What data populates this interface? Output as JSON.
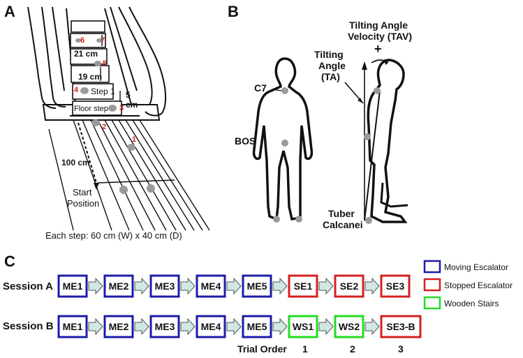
{
  "panels": {
    "a": "A",
    "b": "B",
    "c": "C"
  },
  "panel_a": {
    "step_markers": [
      "6",
      "7",
      "5",
      "4",
      "3",
      "2",
      "1"
    ],
    "dim_21": "21 cm",
    "dim_19": "19 cm",
    "dim_5": "5",
    "dim_5_unit": "cm",
    "step1": "Step 1",
    "floor_step": "Floor step",
    "dist": "100 cm",
    "start_line1": "Start",
    "start_line2": "Position",
    "caption": "Each step: 60 cm (W) x 40 cm (D)"
  },
  "panel_b": {
    "c7": "C7",
    "bos": "BOS",
    "tuber_line1": "Tuber",
    "tuber_line2": "Calcanei",
    "ta_line1": "Tilting",
    "ta_line2": "Angle",
    "ta_line3": "(TA)",
    "tav_line1": "Tilting Angle",
    "tav_line2": "Velocity (TAV)",
    "plus": "+"
  },
  "panel_c": {
    "session_a_label": "Session A",
    "session_b_label": "Session B",
    "session_a": [
      {
        "label": "ME1",
        "type": "moving"
      },
      {
        "label": "ME2",
        "type": "moving"
      },
      {
        "label": "ME3",
        "type": "moving"
      },
      {
        "label": "ME4",
        "type": "moving"
      },
      {
        "label": "ME5",
        "type": "moving"
      },
      {
        "label": "SE1",
        "type": "stopped"
      },
      {
        "label": "SE2",
        "type": "stopped"
      },
      {
        "label": "SE3",
        "type": "stopped"
      }
    ],
    "session_b": [
      {
        "label": "ME1",
        "type": "moving"
      },
      {
        "label": "ME2",
        "type": "moving"
      },
      {
        "label": "ME3",
        "type": "moving"
      },
      {
        "label": "ME4",
        "type": "moving"
      },
      {
        "label": "ME5",
        "type": "moving"
      },
      {
        "label": "WS1",
        "type": "wooden"
      },
      {
        "label": "WS2",
        "type": "wooden"
      },
      {
        "label": "SE3-B",
        "type": "stopped"
      }
    ],
    "legend": [
      {
        "label": "Moving Escalator",
        "type": "moving"
      },
      {
        "label": "Stopped Escalator",
        "type": "stopped"
      },
      {
        "label": "Wooden Stairs",
        "type": "wooden"
      }
    ],
    "trial_order_label": "Trial Order",
    "trial_order_numbers": [
      "1",
      "2",
      "3"
    ]
  },
  "colors": {
    "moving": "#1c1ca8",
    "stopped": "#d42020",
    "wooden": "#22dd22",
    "arrow_fill": "#cfe8e3",
    "marker_red": "#d42020",
    "dot_gray": "#9a9a9a"
  }
}
